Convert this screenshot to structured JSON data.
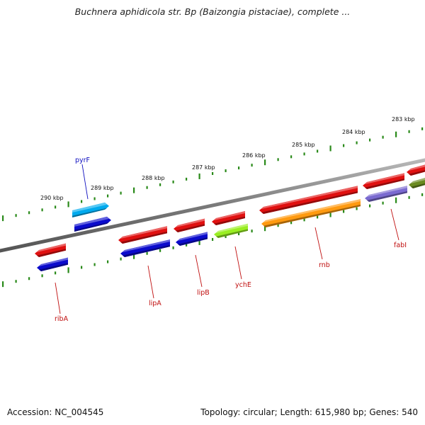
{
  "title": "Buchnera aphidicola str. Bp (Baizongia pistaciae), complete ...",
  "footer": {
    "accession": "Accession: NC_004545",
    "summary": "Topology: circular; Length: 615,980 bp; Genes: 540"
  },
  "ticks": [
    "290 kbp",
    "289 kbp",
    "288 kbp",
    "287 kbp",
    "286 kbp",
    "285 kbp",
    "284 kbp",
    "283 kbp"
  ],
  "gene_labels": [
    "pyrF",
    "ribA",
    "lipA",
    "lipB",
    "ychE",
    "rnb",
    "fabI"
  ],
  "colors": {
    "backbone": "#808080",
    "tick": "#2a8a1a",
    "forward_gene": "#e01010",
    "forward_cog": "#00aaee",
    "reverse_cog_blue": "#0b0bcc",
    "ychE_cog": "#99ee22",
    "rnb_cog": "#ff9a10",
    "fabI_cog": "#7a6ad0",
    "end_cog": "#6a8a20",
    "pyrF_label": "#1010c0",
    "gene_label": "#c01010"
  }
}
